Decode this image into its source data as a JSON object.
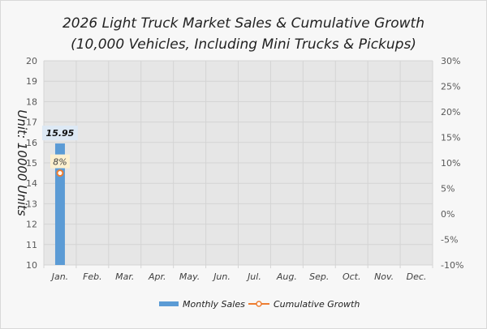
{
  "chart_data": {
    "type": "bar",
    "title": "2026 Light Truck Market Sales & Cumulative Growth",
    "subtitle": "(10,000 Vehicles, Including Mini Trucks & Pickups)",
    "ylabel": "Unit: 10000 Units",
    "xlabel": "",
    "categories": [
      "Jan.",
      "Feb.",
      "Mar.",
      "Apr.",
      "May.",
      "Jun.",
      "Jul.",
      "Aug.",
      "Sep.",
      "Oct.",
      "Nov.",
      "Dec."
    ],
    "ylim": [
      10,
      20
    ],
    "y_ticks": [
      "10",
      "11",
      "12",
      "13",
      "14",
      "15",
      "16",
      "17",
      "18",
      "19",
      "20"
    ],
    "y2lim": [
      -10,
      30
    ],
    "y2_ticks": [
      "-10%",
      "-5%",
      "0%",
      "5%",
      "10%",
      "15%",
      "20%",
      "25%",
      "30%"
    ],
    "grid": true,
    "legend_position": "bottom",
    "series": [
      {
        "name": "Monthly Sales",
        "type": "bar",
        "axis": "left",
        "color": "#5b9bd5",
        "values": [
          15.95,
          null,
          null,
          null,
          null,
          null,
          null,
          null,
          null,
          null,
          null,
          null
        ],
        "labels": [
          "15.95"
        ]
      },
      {
        "name": "Cumulative Growth",
        "type": "line",
        "axis": "right",
        "color": "#ed7d31",
        "values": [
          8,
          null,
          null,
          null,
          null,
          null,
          null,
          null,
          null,
          null,
          null,
          null
        ],
        "labels": [
          "8%"
        ]
      }
    ]
  }
}
